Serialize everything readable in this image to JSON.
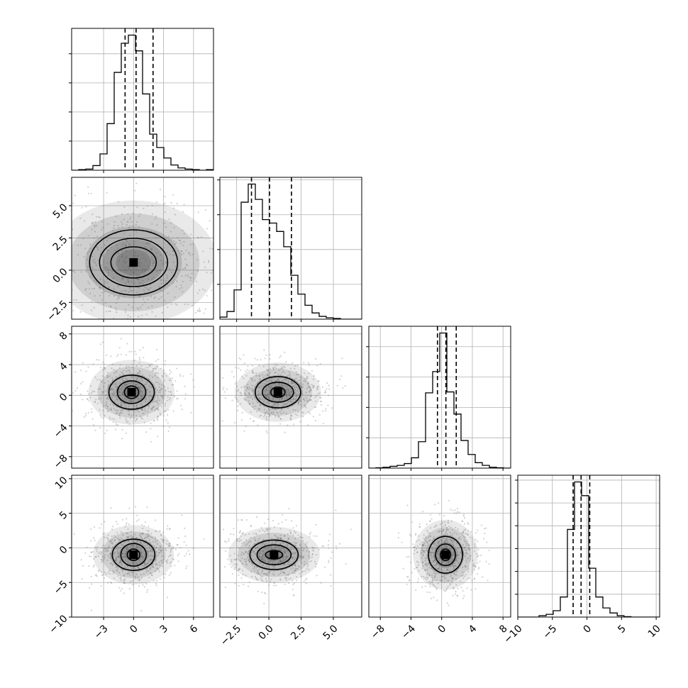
{
  "chart_data": {
    "type": "corner",
    "grid": true,
    "variables": [
      {
        "ticks": [
          -3,
          0,
          3,
          6
        ],
        "tick_labels": [
          "−3",
          "0",
          "3",
          "6"
        ],
        "range": [
          -6.2,
          8.0
        ],
        "quantiles": [
          -0.85,
          0.25,
          1.95
        ],
        "hist_edges": [
          -6.2,
          -5.49,
          -4.78,
          -4.07,
          -3.36,
          -2.65,
          -1.94,
          -1.23,
          -0.52,
          0.19,
          0.9,
          1.61,
          2.32,
          3.03,
          3.74,
          4.45,
          5.16,
          5.87,
          6.58,
          7.29,
          8.0
        ],
        "hist_counts": [
          0,
          1,
          2,
          8,
          28,
          80,
          168,
          218,
          232,
          205,
          131,
          62,
          39,
          21,
          9,
          4,
          2,
          1,
          0,
          1
        ]
      },
      {
        "ticks": [
          -2.5,
          0.0,
          2.5,
          5.0
        ],
        "tick_labels": [
          "−2.5",
          "0.0",
          "2.5",
          "5.0"
        ],
        "range": [
          -3.8,
          7.2
        ],
        "quantiles": [
          -1.35,
          0.05,
          1.75
        ],
        "hist_edges": [
          -3.8,
          -3.25,
          -2.7,
          -2.15,
          -1.6,
          -1.05,
          -0.5,
          0.05,
          0.6,
          1.15,
          1.7,
          2.25,
          2.8,
          3.35,
          3.9,
          4.45,
          5.0,
          5.55,
          6.1,
          6.65,
          7.2
        ],
        "hist_counts": [
          3,
          11,
          42,
          168,
          194,
          172,
          143,
          138,
          126,
          104,
          63,
          36,
          20,
          9,
          4,
          2,
          1,
          0,
          0,
          0
        ]
      },
      {
        "ticks": [
          -8,
          -4,
          0,
          4,
          8
        ],
        "tick_labels": [
          "−8",
          "−4",
          "0",
          "4",
          "8"
        ],
        "range": [
          -9.5,
          9.0
        ],
        "quantiles": [
          -0.55,
          0.55,
          1.9
        ],
        "hist_edges": [
          -9.5,
          -8.575,
          -7.65,
          -6.725,
          -5.8,
          -4.875,
          -3.95,
          -3.025,
          -2.1,
          -1.175,
          -0.25,
          0.675,
          1.6,
          2.525,
          3.45,
          4.375,
          5.3,
          6.225,
          7.15,
          8.075,
          9.0
        ],
        "hist_counts": [
          0,
          1,
          3,
          6,
          9,
          15,
          34,
          87,
          248,
          318,
          445,
          251,
          178,
          91,
          45,
          18,
          9,
          3,
          1,
          0
        ]
      },
      {
        "ticks": [
          -10,
          -5,
          0,
          5,
          10
        ],
        "tick_labels": [
          "−10",
          "−5",
          "0",
          "5",
          "10"
        ],
        "range": [
          -10.0,
          10.5
        ],
        "quantiles": [
          -2.0,
          -0.85,
          0.4
        ],
        "hist_edges": [
          -10.0,
          -8.975,
          -7.95,
          -6.925,
          -5.9,
          -4.875,
          -3.85,
          -2.825,
          -1.8,
          -0.775,
          0.25,
          1.275,
          2.3,
          3.325,
          4.375,
          5.35,
          6.375,
          7.4,
          8.425,
          9.45,
          10.5
        ],
        "hist_counts": [
          0,
          0,
          0,
          3,
          6,
          14,
          44,
          192,
          296,
          266,
          107,
          44,
          20,
          9,
          3,
          1,
          0,
          0,
          0,
          0
        ]
      }
    ],
    "pairs": [
      {
        "row": 1,
        "col": 0,
        "center": [
          0.0,
          0.6
        ],
        "contours": [
          [
            0.8,
            0.55,
            -0.2
          ],
          [
            1.2,
            0.85,
            -0.2
          ],
          [
            1.55,
            1.15,
            -0.2
          ]
        ]
      },
      {
        "row": 2,
        "col": 0,
        "center": [
          -0.2,
          0.4
        ],
        "contours": [
          [
            0.25,
            0.22,
            0.0
          ],
          [
            0.5,
            0.4,
            0.0
          ],
          [
            0.8,
            0.6,
            0.0
          ]
        ]
      },
      {
        "row": 2,
        "col": 1,
        "center": [
          0.7,
          0.4
        ],
        "contours": [
          [
            0.25,
            0.18,
            0.0
          ],
          [
            0.55,
            0.35,
            0.0
          ],
          [
            0.8,
            0.55,
            0.0
          ]
        ]
      },
      {
        "row": 3,
        "col": 0,
        "center": [
          0.0,
          -1.0
        ],
        "contours": [
          [
            0.22,
            0.2,
            0.0
          ],
          [
            0.45,
            0.4,
            0.0
          ],
          [
            0.75,
            0.55,
            0.0
          ]
        ]
      },
      {
        "row": 3,
        "col": 1,
        "center": [
          0.4,
          -1.0
        ],
        "contours": [
          [
            0.3,
            0.15,
            0.0
          ],
          [
            0.6,
            0.35,
            0.0
          ],
          [
            0.85,
            0.52,
            0.0
          ]
        ]
      },
      {
        "row": 3,
        "col": 2,
        "center": [
          0.5,
          -1.0
        ],
        "contours": [
          [
            0.18,
            0.2,
            0.0
          ],
          [
            0.35,
            0.38,
            0.0
          ],
          [
            0.6,
            0.65,
            0.0
          ]
        ]
      }
    ]
  },
  "colors": {
    "line": "#000000",
    "grid": "#b0b0b0",
    "scatter": "#808080",
    "shade": "#4a4a4a"
  }
}
